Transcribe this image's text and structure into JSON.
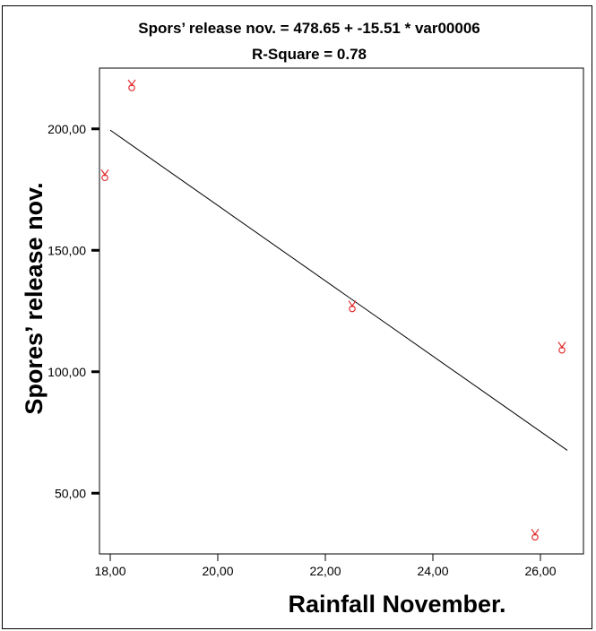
{
  "chart_data": {
    "type": "scatter",
    "title": "Spors’ release nov. = 478.65 + -15.51 * var00006",
    "subtitle": "R-Square = 0.78",
    "xlabel": "Rainfall November.",
    "ylabel": "Spores’ release nov.",
    "xlim": [
      17.8,
      26.8
    ],
    "ylim": [
      25,
      225
    ],
    "x_ticks": [
      18,
      20,
      22,
      24,
      26
    ],
    "x_tick_labels": [
      "18,00",
      "20,00",
      "22,00",
      "24,00",
      "26,00"
    ],
    "y_ticks": [
      50,
      100,
      150,
      200
    ],
    "y_tick_labels": [
      "50,00",
      "100,00",
      "150,00",
      "200,00"
    ],
    "points": [
      {
        "x": 17.9,
        "y": 181
      },
      {
        "x": 18.4,
        "y": 218
      },
      {
        "x": 22.5,
        "y": 127
      },
      {
        "x": 26.4,
        "y": 110
      },
      {
        "x": 25.9,
        "y": 33
      }
    ],
    "regression": {
      "intercept": 478.65,
      "slope": -15.51,
      "x_range": [
        18.0,
        26.5
      ]
    },
    "marker_color": "#e03030",
    "line_color": "#000000",
    "grid": false
  }
}
